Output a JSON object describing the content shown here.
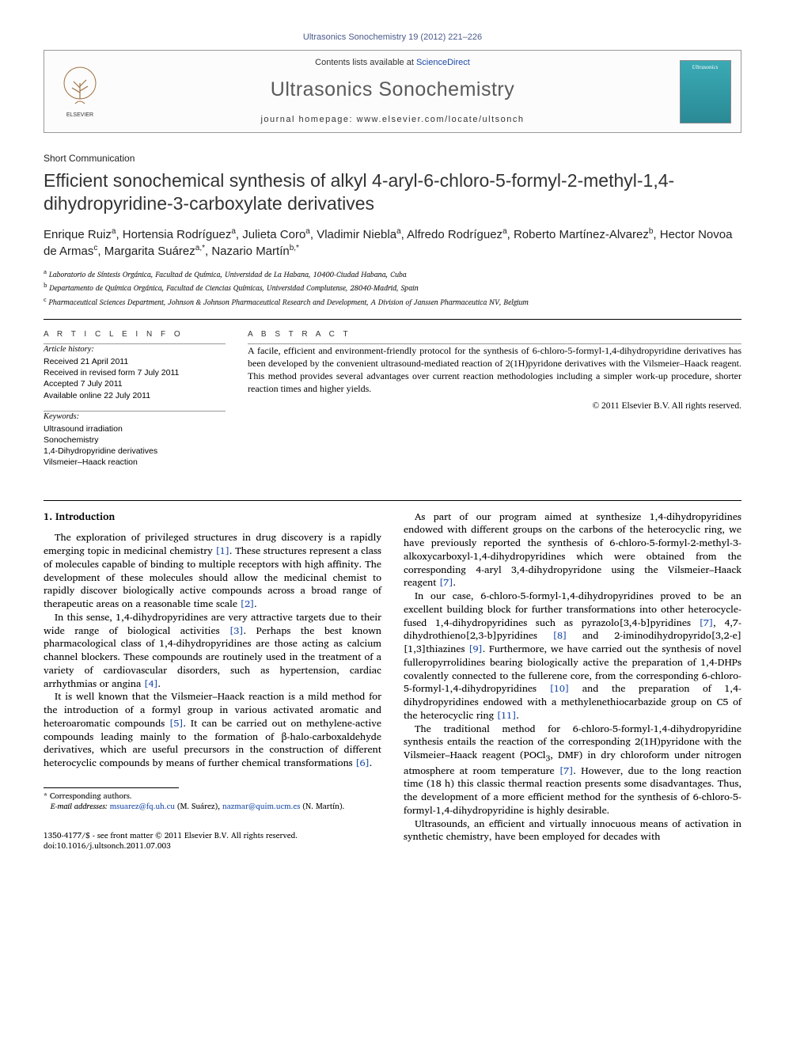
{
  "header": {
    "ref_line": "Ultrasonics Sonochemistry 19 (2012) 221–226",
    "contents_prefix": "Contents lists available at ",
    "contents_link": "ScienceDirect",
    "journal_name": "Ultrasonics Sonochemistry",
    "homepage_label": "journal homepage: ",
    "homepage_url": "www.elsevier.com/locate/ultsonch",
    "cover_label": "Ultrasonics",
    "publisher_name": "ELSEVIER"
  },
  "article": {
    "type": "Short Communication",
    "title": "Efficient sonochemical synthesis of alkyl 4-aryl-6-chloro-5-formyl-2-methyl-1,4-dihydropyridine-3-carboxylate derivatives",
    "authors_html": "Enrique Ruiz<sup>a</sup>, Hortensia Rodríguez<sup>a</sup>, Julieta Coro<sup>a</sup>, Vladimir Niebla<sup>a</sup>, Alfredo Rodríguez<sup>a</sup>, Roberto Martínez-Alvarez<sup>b</sup>, Hector Novoa de Armas<sup>c</sup>, Margarita Suárez<sup>a,*</sup>, Nazario Martín<sup>b,*</sup>",
    "affiliations": [
      {
        "sup": "a",
        "text": "Laboratorio de Síntesis Orgánica, Facultad de Química, Universidad de La Habana, 10400-Ciudad Habana, Cuba"
      },
      {
        "sup": "b",
        "text": "Departamento de Química Orgánica, Facultad de Ciencias Químicas, Universidad Complutense, 28040-Madrid, Spain"
      },
      {
        "sup": "c",
        "text": "Pharmaceutical Sciences Department, Johnson & Johnson Pharmaceutical Research and Development, A Division of Janssen Pharmaceutica NV, Belgium"
      }
    ]
  },
  "info": {
    "heading": "A R T I C L E   I N F O",
    "history_label": "Article history:",
    "history": [
      "Received 21 April 2011",
      "Received in revised form 7 July 2011",
      "Accepted 7 July 2011",
      "Available online 22 July 2011"
    ],
    "keywords_label": "Keywords:",
    "keywords": [
      "Ultrasound irradiation",
      "Sonochemistry",
      "1,4-Dihydropyridine derivatives",
      "Vilsmeier–Haack reaction"
    ]
  },
  "abstract": {
    "heading": "A B S T R A C T",
    "text": "A facile, efficient and environment-friendly protocol for the synthesis of 6-chloro-5-formyl-1,4-dihydropyridine derivatives has been developed by the convenient ultrasound-mediated reaction of 2(1H)pyridone derivatives with the Vilsmeier–Haack reagent. This method provides several advantages over current reaction methodologies including a simpler work-up procedure, shorter reaction times and higher yields.",
    "copyright": "© 2011 Elsevier B.V. All rights reserved."
  },
  "body": {
    "section_heading": "1. Introduction",
    "paragraphs_col1": [
      "The exploration of privileged structures in drug discovery is a rapidly emerging topic in medicinal chemistry <span class=\"ref-link\">[1]</span>. These structures represent a class of molecules capable of binding to multiple receptors with high affinity. The development of these molecules should allow the medicinal chemist to rapidly discover biologically active compounds across a broad range of therapeutic areas on a reasonable time scale <span class=\"ref-link\">[2]</span>.",
      "In this sense, 1,4-dihydropyridines are very attractive targets due to their wide range of biological activities <span class=\"ref-link\">[3]</span>. Perhaps the best known pharmacological class of 1,4-dihydropyridines are those acting as calcium channel blockers. These compounds are routinely used in the treatment of a variety of cardiovascular disorders, such as hypertension, cardiac arrhythmias or angina <span class=\"ref-link\">[4]</span>.",
      "It is well known that the Vilsmeier–Haack reaction is a mild method for the introduction of a formyl group in various activated aromatic and heteroaromatic compounds <span class=\"ref-link\">[5]</span>. It can be carried out on methylene-active compounds leading mainly to the formation of β-halo-carboxaldehyde derivatives, which are useful precursors in the construction of different heterocyclic compounds by means of further chemical transformations <span class=\"ref-link\">[6]</span>."
    ],
    "paragraphs_col2": [
      "As part of our program aimed at synthesize 1,4-dihydropyridines endowed with different groups on the carbons of the heterocyclic ring, we have previously reported the synthesis of 6-chloro-5-formyl-2-methyl-3-alkoxycarboxyl-1,4-dihydropyridines which were obtained from the corresponding 4-aryl 3,4-dihydropyridone using the Vilsmeier–Haack reagent <span class=\"ref-link\">[7]</span>.",
      "In our case, 6-chloro-5-formyl-1,4-dihydropyridines proved to be an excellent building block for further transformations into other heterocycle-fused 1,4-dihydropyridines such as pyrazolo[3,4-b]pyridines <span class=\"ref-link\">[7]</span>, 4,7-dihydrothieno[2,3-b]pyridines <span class=\"ref-link\">[8]</span> and 2-iminodihydropyrido[3,2-e][1,3]thiazines <span class=\"ref-link\">[9]</span>. Furthermore, we have carried out the synthesis of novel fulleropyrrolidines bearing biologically active the preparation of 1,4-DHPs covalently connected to the fullerene core, from the corresponding 6-chloro-5-formyl-1,4-dihydropyridines <span class=\"ref-link\">[10]</span> and the preparation of 1,4-dihydropyridines endowed with a methylenethiocarbazide group on C5 of the heterocyclic ring <span class=\"ref-link\">[11]</span>.",
      "The traditional method for 6-chloro-5-formyl-1,4-dihydropyridine synthesis entails the reaction of the corresponding 2(1H)pyridone with the Vilsmeier–Haack reagent (POCl<sub>3</sub>, DMF) in dry chloroform under nitrogen atmosphere at room temperature <span class=\"ref-link\">[7]</span>. However, due to the long reaction time (18 h) this classic thermal reaction presents some disadvantages. Thus, the development of a more efficient method for the synthesis of 6-chloro-5-formyl-1,4-dihydropyridine is highly desirable.",
      "Ultrasounds, an efficient and virtually innocuous means of activation in synthetic chemistry, have been employed for decades with"
    ]
  },
  "footnotes": {
    "corr_label": "* Corresponding authors.",
    "email_label": "E-mail addresses:",
    "emails": [
      {
        "addr": "msuarez@fq.uh.cu",
        "who": "(M. Suárez)"
      },
      {
        "addr": "nazmar@quim.ucm.es",
        "who": "(N. Martín)."
      }
    ]
  },
  "footer": {
    "issn_line": "1350-4177/$ - see front matter © 2011 Elsevier B.V. All rights reserved.",
    "doi": "doi:10.1016/j.ultsonch.2011.07.003"
  },
  "colors": {
    "link": "#1a4aa8",
    "journal_grey": "#5a5a5a",
    "rule": "#000000",
    "elsevier_orange": "#e87b22"
  }
}
